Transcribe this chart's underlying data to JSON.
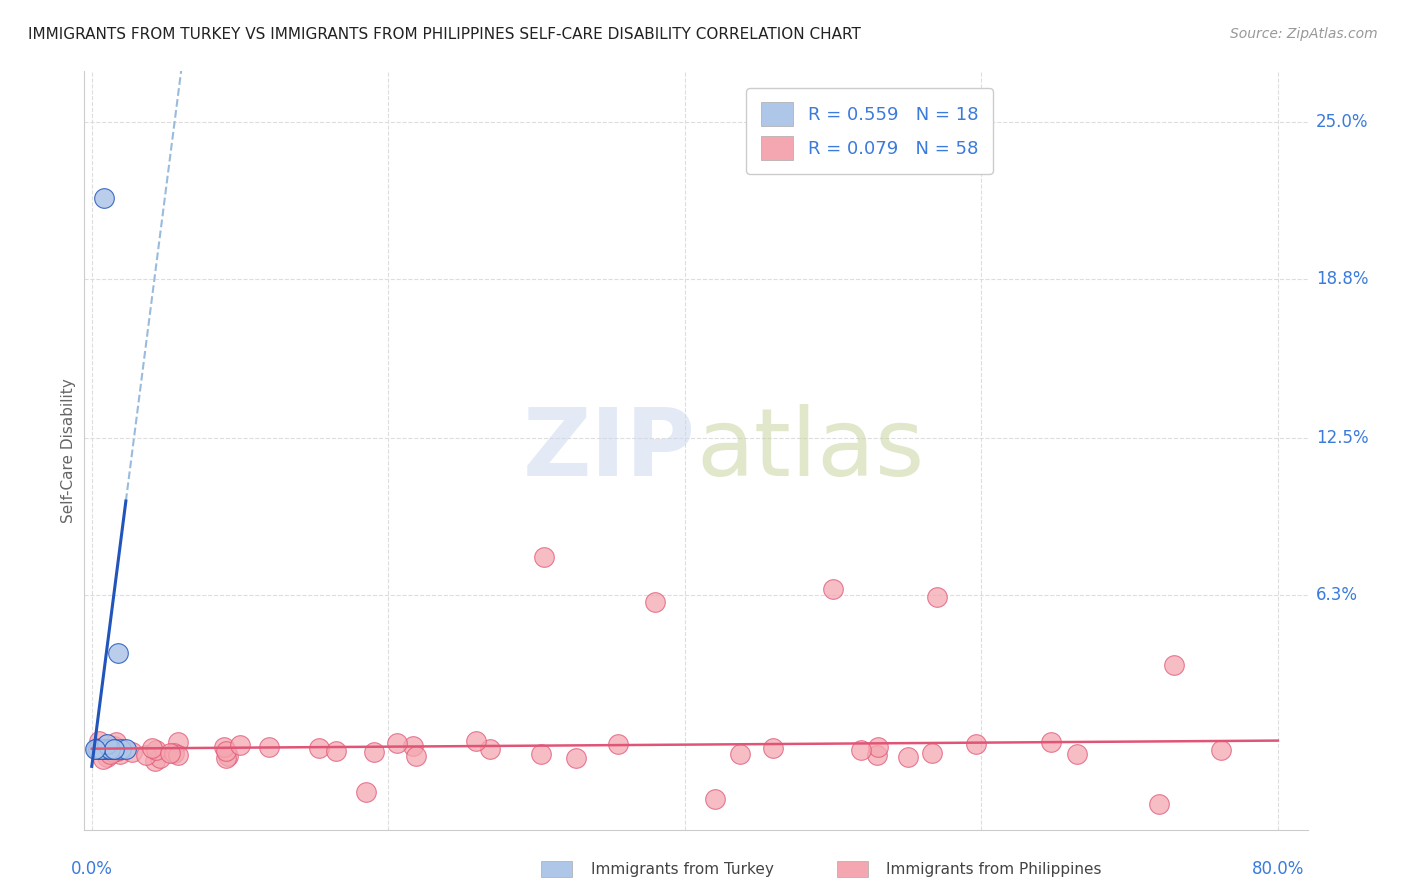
{
  "title": "IMMIGRANTS FROM TURKEY VS IMMIGRANTS FROM PHILIPPINES SELF-CARE DISABILITY CORRELATION CHART",
  "source": "Source: ZipAtlas.com",
  "ylabel": "Self-Care Disability",
  "ytick_values": [
    0.25,
    0.188,
    0.125,
    0.063
  ],
  "ytick_labels": [
    "25.0%",
    "18.8%",
    "12.5%",
    "6.3%"
  ],
  "xlim": [
    -0.005,
    0.82
  ],
  "ylim": [
    -0.03,
    0.27
  ],
  "color_turkey": "#aec6e8",
  "color_turkey_line": "#2255bb",
  "color_turkey_dashed": "#99bbdd",
  "color_philippines": "#f4a7b0",
  "color_philippines_line": "#e05575",
  "background_color": "#ffffff",
  "grid_color": "#dddddd",
  "watermark_color": "#d0e4f5",
  "watermark_color2": "#c8d8a8"
}
